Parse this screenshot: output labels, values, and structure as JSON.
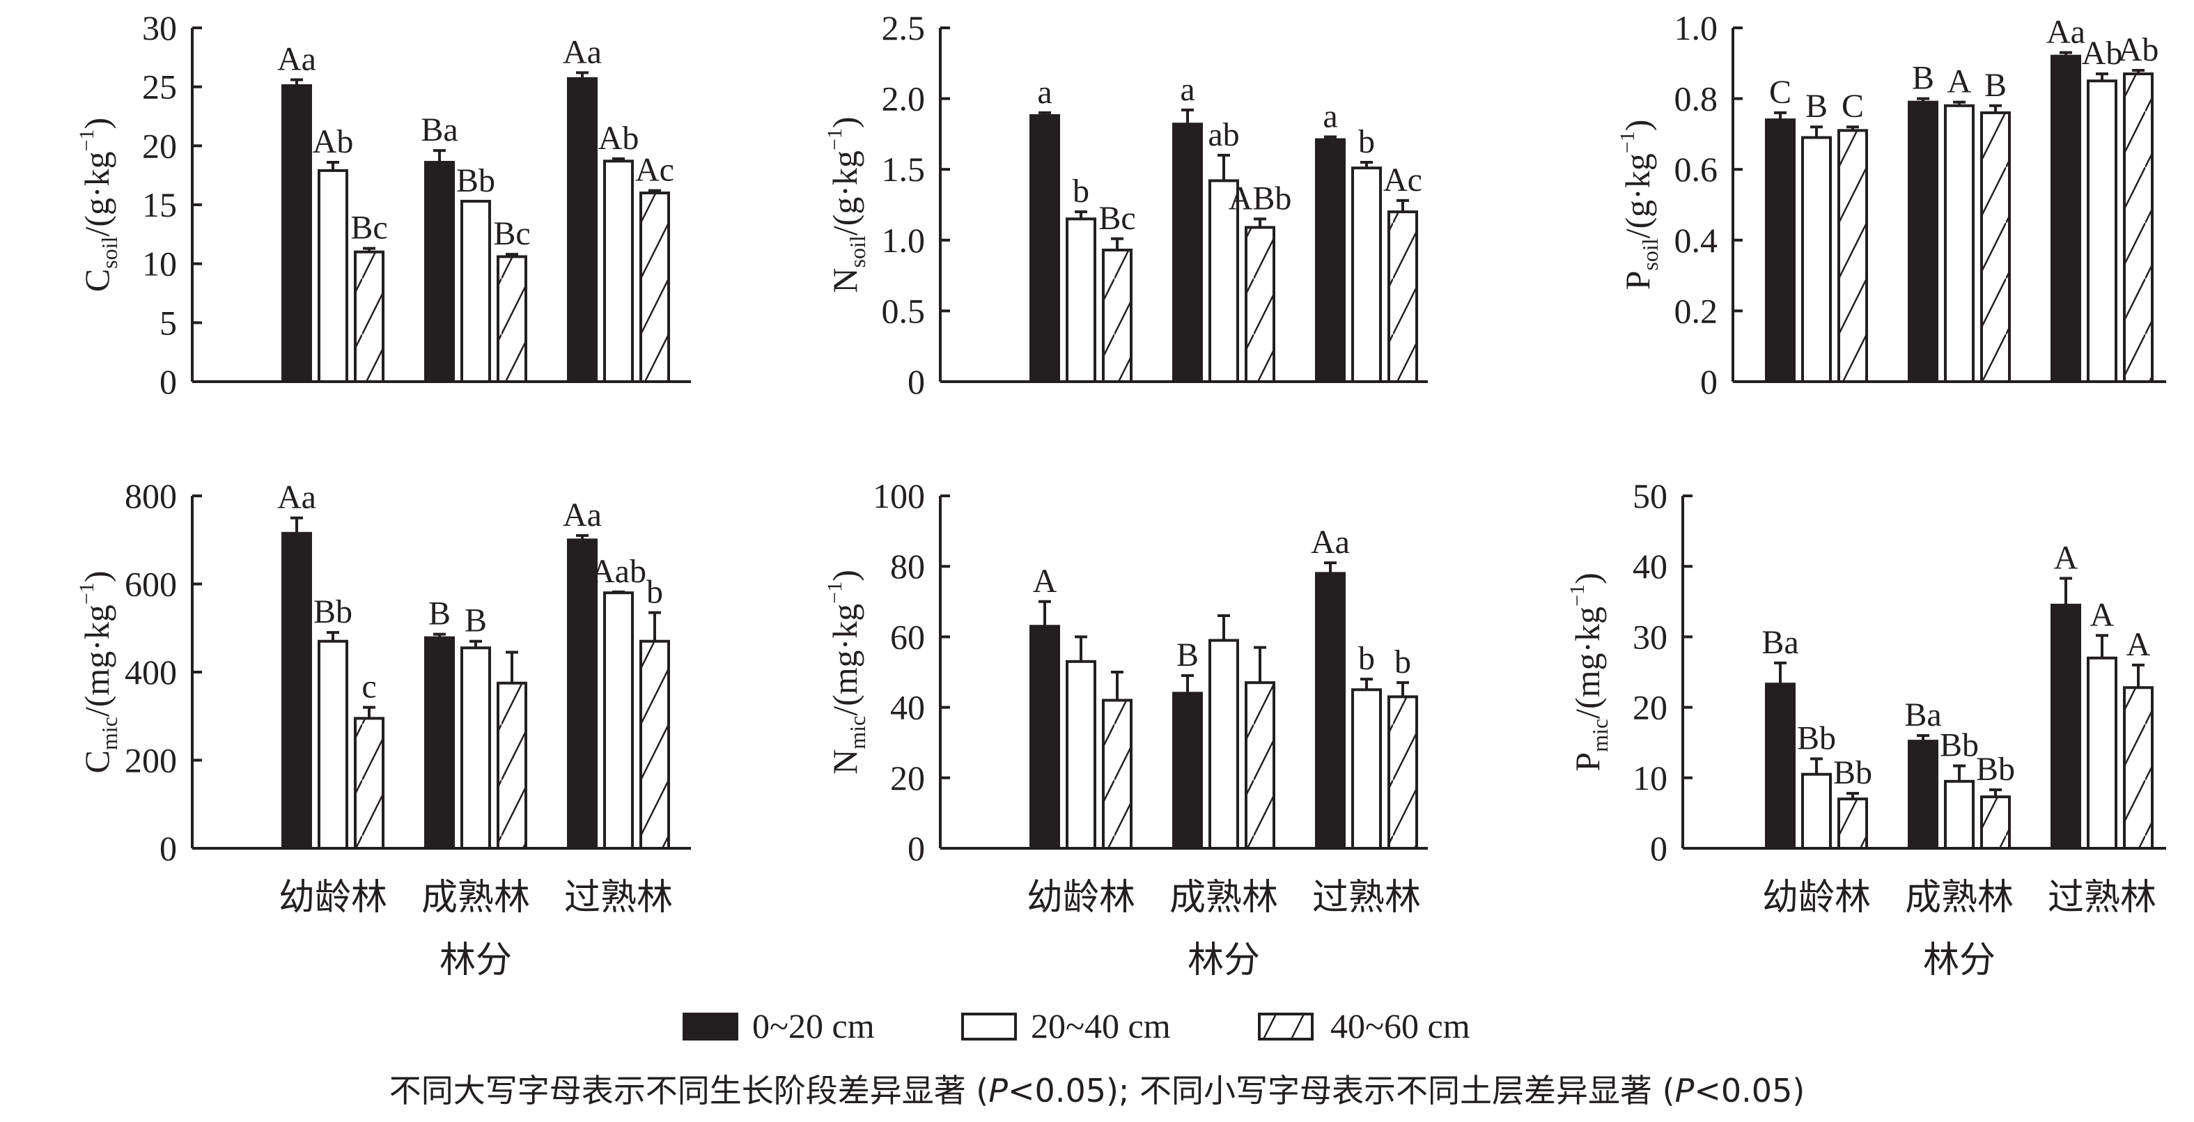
{
  "chart_data": [
    {
      "type": "bar",
      "ylabel": {
        "main": "C",
        "sub": "soil",
        "unit": "/(g·kg",
        "sup": "−1",
        "close": ")"
      },
      "ylim": [
        0,
        30
      ],
      "yticks": [
        0,
        5,
        10,
        15,
        20,
        25,
        30
      ],
      "categories": [
        "幼龄林",
        "成熟林",
        "过熟林"
      ],
      "show_categories": false,
      "xlabel": "",
      "series": [
        {
          "name": "0~20 cm",
          "values": [
            25.1,
            18.6,
            25.7
          ],
          "errors": [
            0.5,
            1.0,
            0.5
          ],
          "labels": [
            "Aa",
            "Ba",
            "Aa"
          ]
        },
        {
          "name": "20~40 cm",
          "values": [
            17.9,
            15.3,
            18.7
          ],
          "errors": [
            0.7,
            0,
            0.2
          ],
          "labels": [
            "Ab",
            "Bb",
            "Ab"
          ]
        },
        {
          "name": "40~60 cm",
          "values": [
            11.0,
            10.6,
            16.0
          ],
          "errors": [
            0.3,
            0.2,
            0.2
          ],
          "labels": [
            "Bc",
            "Bc",
            "Ac"
          ]
        }
      ]
    },
    {
      "type": "bar",
      "ylabel": {
        "main": "N",
        "sub": "soil",
        "unit": "/(g·kg",
        "sup": "−1",
        "close": ")"
      },
      "ylim": [
        0,
        2.5
      ],
      "yticks": [
        "0",
        "0.5",
        "1.0",
        "1.5",
        "2.0",
        "2.5"
      ],
      "categories": [
        "幼龄林",
        "成熟林",
        "过熟林"
      ],
      "show_categories": false,
      "xlabel": "",
      "series": [
        {
          "name": "0~20 cm",
          "values": [
            1.88,
            1.82,
            1.71
          ],
          "errors": [
            0.02,
            0.1,
            0.02
          ],
          "labels": [
            "a",
            "a",
            "a"
          ]
        },
        {
          "name": "20~40 cm",
          "values": [
            1.15,
            1.42,
            1.51
          ],
          "errors": [
            0.05,
            0.18,
            0.04
          ],
          "labels": [
            "b",
            "ab",
            "b"
          ]
        },
        {
          "name": "40~60 cm",
          "values": [
            0.93,
            1.09,
            1.2
          ],
          "errors": [
            0.08,
            0.06,
            0.08
          ],
          "labels": [
            "Bc",
            "ABb",
            "Ac"
          ]
        }
      ]
    },
    {
      "type": "bar",
      "ylabel": {
        "main": "P",
        "sub": "soil",
        "unit": "/(g·kg",
        "sup": "−1",
        "close": ")"
      },
      "ylim": [
        0,
        1.0
      ],
      "yticks": [
        "0",
        "0.2",
        "0.4",
        "0.6",
        "0.8",
        "1.0"
      ],
      "categories": [
        "幼龄林",
        "成熟林",
        "过熟林"
      ],
      "show_categories": false,
      "xlabel": "",
      "series": [
        {
          "name": "0~20 cm",
          "values": [
            0.74,
            0.79,
            0.92
          ],
          "errors": [
            0.02,
            0.01,
            0.01
          ],
          "labels": [
            "C",
            "B",
            "Aa"
          ]
        },
        {
          "name": "20~40 cm",
          "values": [
            0.69,
            0.78,
            0.85
          ],
          "errors": [
            0.03,
            0.01,
            0.02
          ],
          "labels": [
            "B",
            "A",
            "Ab"
          ]
        },
        {
          "name": "40~60 cm",
          "values": [
            0.71,
            0.76,
            0.87
          ],
          "errors": [
            0.01,
            0.02,
            0.01
          ],
          "labels": [
            "C",
            "B",
            "Ab"
          ]
        }
      ]
    },
    {
      "type": "bar",
      "ylabel": {
        "main": "C",
        "sub": "mic",
        "unit": "/(mg·kg",
        "sup": "−1",
        "close": ")"
      },
      "ylim": [
        0,
        800
      ],
      "yticks": [
        0,
        200,
        400,
        600,
        800
      ],
      "categories": [
        "幼龄林",
        "成熟林",
        "过熟林"
      ],
      "show_categories": true,
      "xlabel": "林分",
      "series": [
        {
          "name": "0~20 cm",
          "values": [
            715,
            478,
            700
          ],
          "errors": [
            35,
            8,
            10
          ],
          "labels": [
            "Aa",
            "B",
            "Aa"
          ]
        },
        {
          "name": "20~40 cm",
          "values": [
            470,
            455,
            580
          ],
          "errors": [
            20,
            15,
            2
          ],
          "labels": [
            "Bb",
            "B",
            "Aab"
          ]
        },
        {
          "name": "40~60 cm",
          "values": [
            295,
            375,
            470
          ],
          "errors": [
            25,
            70,
            65
          ],
          "labels": [
            "c",
            "",
            "b"
          ]
        }
      ]
    },
    {
      "type": "bar",
      "ylabel": {
        "main": "N",
        "sub": "mic",
        "unit": "/(mg·kg",
        "sup": "−1",
        "close": ")"
      },
      "ylim": [
        0,
        100
      ],
      "yticks": [
        0,
        20,
        40,
        60,
        80,
        100
      ],
      "categories": [
        "幼龄林",
        "成熟林",
        "过熟林"
      ],
      "show_categories": true,
      "xlabel": "林分",
      "series": [
        {
          "name": "0~20 cm",
          "values": [
            63,
            44,
            78
          ],
          "errors": [
            7,
            5,
            3
          ],
          "labels": [
            "A",
            "B",
            "Aa"
          ]
        },
        {
          "name": "20~40 cm",
          "values": [
            53,
            59,
            45
          ],
          "errors": [
            7,
            7,
            3
          ],
          "labels": [
            "",
            "",
            "b"
          ]
        },
        {
          "name": "40~60 cm",
          "values": [
            42,
            47,
            43
          ],
          "errors": [
            8,
            10,
            4
          ],
          "labels": [
            "",
            "",
            "b"
          ]
        }
      ]
    },
    {
      "type": "bar",
      "ylabel": {
        "main": "P",
        "sub": "mic",
        "unit": "/(mg·kg",
        "sup": "−1",
        "close": ")"
      },
      "ylim": [
        0,
        50
      ],
      "yticks": [
        0,
        10,
        20,
        30,
        40,
        50
      ],
      "categories": [
        "幼龄林",
        "成熟林",
        "过熟林"
      ],
      "show_categories": true,
      "xlabel": "林分",
      "series": [
        {
          "name": "0~20 cm",
          "values": [
            23.3,
            15.2,
            34.5
          ],
          "errors": [
            3.0,
            0.8,
            3.8
          ],
          "labels": [
            "Ba",
            "Ba",
            "A"
          ]
        },
        {
          "name": "20~40 cm",
          "values": [
            10.5,
            9.5,
            27.0
          ],
          "errors": [
            2.2,
            2.2,
            3.2
          ],
          "labels": [
            "Bb",
            "Bb",
            "A"
          ]
        },
        {
          "name": "40~60 cm",
          "values": [
            7.0,
            7.3,
            22.8
          ],
          "errors": [
            0.8,
            1.0,
            3.2
          ],
          "labels": [
            "Bb",
            "Bb",
            "A"
          ]
        }
      ]
    }
  ],
  "legend": {
    "placement": "bottom-center",
    "items": [
      "0~20 cm",
      "20~40 cm",
      "40~60 cm"
    ]
  },
  "footnote": {
    "part1": "不同大写字母表示不同生长阶段差异显著 (",
    "p1": "P",
    "part2": "<0.05); 不同小写字母表示不同土层差异显著 (",
    "p2": "P",
    "part3": "<0.05)"
  },
  "colors": {
    "ink": "#231f20",
    "fill0": "#231f20",
    "fill1": "#ffffff"
  }
}
